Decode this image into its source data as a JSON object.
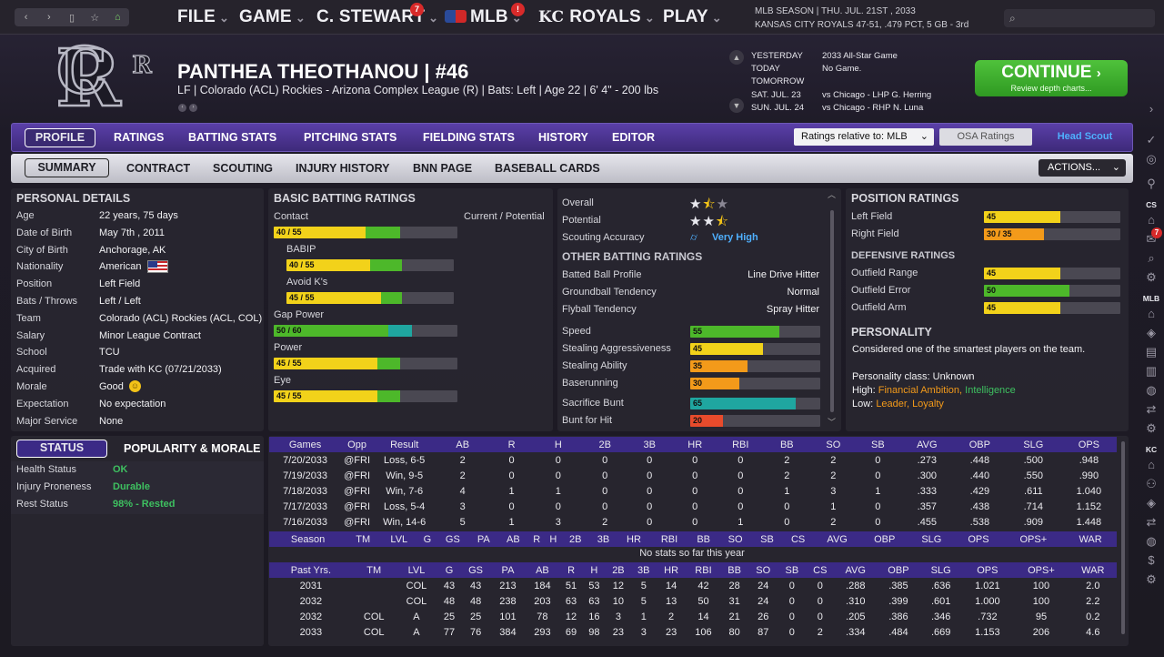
{
  "topbar": {
    "file": "FILE",
    "game": "GAME",
    "manager": "C. STEWART",
    "manager_badge": "7",
    "league": "MLB",
    "league_badge": "!",
    "team": "ROYALS",
    "play": "PLAY",
    "season_line": "MLB SEASON",
    "date": "THU. JUL. 21ST , 2033",
    "team_name": "KANSAS CITY ROYALS",
    "record": "47-51, .479 PCT, 5 GB - 3rd"
  },
  "player": {
    "name": "PANTHEA THEOTHANOU",
    "number": "#46",
    "info": "LF | Colorado (ACL) Rockies - Arizona Complex League (R)  |  Bats: Left  |  Age 22  |  6' 4\" - 200 lbs"
  },
  "schedule": [
    {
      "day": "YESTERDAY",
      "event": "2033 All-Star Game"
    },
    {
      "day": "TODAY",
      "event": "No Game."
    },
    {
      "day": "TOMORROW",
      "event": ""
    },
    {
      "day": "SAT. JUL. 23",
      "event": "vs Chicago - LHP G. Herring"
    },
    {
      "day": "SUN. JUL. 24",
      "event": "vs Chicago - RHP N. Luna"
    }
  ],
  "continue": {
    "label": "CONTINUE",
    "sub": "Review depth charts..."
  },
  "tabs1": [
    "PROFILE",
    "RATINGS",
    "BATTING STATS",
    "PITCHING STATS",
    "FIELDING STATS",
    "HISTORY",
    "EDITOR"
  ],
  "ratings_rel": "Ratings relative to: MLB",
  "osa": "OSA Ratings",
  "head_scout": "Head Scout",
  "tabs2": [
    "SUMMARY",
    "CONTRACT",
    "SCOUTING",
    "INJURY HISTORY",
    "BNN PAGE",
    "BASEBALL CARDS"
  ],
  "actions": "ACTIONS...",
  "personal": {
    "title": "PERSONAL DETAILS",
    "rows": [
      [
        "Age",
        "22 years, 75 days"
      ],
      [
        "Date of Birth",
        "May 7th , 2011"
      ],
      [
        "City of Birth",
        "Anchorage, AK"
      ],
      [
        "Nationality",
        "American"
      ],
      [
        "Position",
        "Left Field"
      ],
      [
        "Bats / Throws",
        "Left / Left"
      ],
      [
        "Team",
        "Colorado (ACL) Rockies (ACL, COL)"
      ],
      [
        "Salary",
        "Minor League Contract"
      ],
      [
        "School",
        "TCU"
      ],
      [
        "Acquired",
        "Trade with KC (07/21/2033)"
      ],
      [
        "Morale",
        "Good"
      ],
      [
        "Expectation",
        "No expectation"
      ],
      [
        "Major Service",
        "None"
      ]
    ]
  },
  "status": {
    "tab": "STATUS",
    "tab2": "POPULARITY & MORALE",
    "rows": [
      [
        "Health Status",
        "OK"
      ],
      [
        "Injury Proneness",
        "Durable"
      ],
      [
        "Rest Status",
        "98% - Rested"
      ]
    ]
  },
  "batting": {
    "title": "BASIC BATTING RATINGS",
    "header": "Current / Potential",
    "rows": [
      {
        "label": "Contact",
        "text": "40 / 55",
        "cur": 40,
        "pot": 55
      },
      {
        "label": "BABIP",
        "text": "40 / 55",
        "cur": 40,
        "pot": 55
      },
      {
        "label": "Avoid K's",
        "text": "45 / 55",
        "cur": 45,
        "pot": 55
      },
      {
        "label": "Gap Power",
        "text": "50 / 60",
        "cur": 50,
        "pot": 60
      },
      {
        "label": "Power",
        "text": "45 / 55",
        "cur": 45,
        "pot": 55
      },
      {
        "label": "Eye",
        "text": "45 / 55",
        "cur": 45,
        "pot": 55
      }
    ]
  },
  "summary": {
    "overall": "Overall",
    "potential": "Potential",
    "scouting": "Scouting Accuracy",
    "scouting_val": "Very High",
    "overall_stars": 1.5,
    "potential_stars": 2.5
  },
  "other": {
    "title": "OTHER BATTING RATINGS",
    "rows": [
      [
        "Batted Ball Profile",
        "Line Drive Hitter"
      ],
      [
        "Groundball Tendency",
        "Normal"
      ],
      [
        "Flyball Tendency",
        "Spray Hitter"
      ]
    ],
    "bars": [
      {
        "label": "Speed",
        "v": 55
      },
      {
        "label": "Stealing Aggressiveness",
        "v": 45
      },
      {
        "label": "Stealing Ability",
        "v": 35
      },
      {
        "label": "Baserunning",
        "v": 30
      },
      {
        "label": "Sacrifice Bunt",
        "v": 65
      },
      {
        "label": "Bunt for Hit",
        "v": 20
      }
    ]
  },
  "position": {
    "title": "POSITION RATINGS",
    "rows": [
      {
        "label": "Left Field",
        "text": "45",
        "cur": 45,
        "pot": 45
      },
      {
        "label": "Right Field",
        "text": "30 / 35",
        "cur": 30,
        "pot": 35
      }
    ],
    "def_title": "DEFENSIVE RATINGS",
    "def": [
      {
        "label": "Outfield Range",
        "v": 45
      },
      {
        "label": "Outfield Error",
        "v": 50
      },
      {
        "label": "Outfield Arm",
        "v": 45
      }
    ]
  },
  "personality": {
    "title": "PERSONALITY",
    "desc": "Considered one of the smartest players on the team.",
    "class": "Personality class: Unknown",
    "high_label": "High:",
    "high1": "Financial Ambition,",
    "high2": "Intelligence",
    "low_label": "Low:",
    "low": "Leader, Loyalty"
  },
  "games": {
    "header": [
      "Games",
      "Opp",
      "Result",
      "AB",
      "R",
      "H",
      "2B",
      "3B",
      "HR",
      "RBI",
      "BB",
      "SO",
      "SB",
      "AVG",
      "OBP",
      "SLG",
      "OPS"
    ],
    "rows": [
      [
        "7/20/2033",
        "@FRI",
        "Loss, 6-5",
        "2",
        "0",
        "0",
        "0",
        "0",
        "0",
        "0",
        "2",
        "2",
        "0",
        ".273",
        ".448",
        ".500",
        ".948"
      ],
      [
        "7/19/2033",
        "@FRI",
        "Win, 9-5",
        "2",
        "0",
        "0",
        "0",
        "0",
        "0",
        "0",
        "2",
        "2",
        "0",
        ".300",
        ".440",
        ".550",
        ".990"
      ],
      [
        "7/18/2033",
        "@FRI",
        "Win, 7-6",
        "4",
        "1",
        "1",
        "0",
        "0",
        "0",
        "0",
        "1",
        "3",
        "1",
        ".333",
        ".429",
        ".611",
        "1.040"
      ],
      [
        "7/17/2033",
        "@FRI",
        "Loss, 5-4",
        "3",
        "0",
        "0",
        "0",
        "0",
        "0",
        "0",
        "0",
        "1",
        "0",
        ".357",
        ".438",
        ".714",
        "1.152"
      ],
      [
        "7/16/2033",
        "@FRI",
        "Win, 14-6",
        "5",
        "1",
        "3",
        "2",
        "0",
        "0",
        "1",
        "0",
        "2",
        "0",
        ".455",
        ".538",
        ".909",
        "1.448"
      ]
    ]
  },
  "season": {
    "header": [
      "Season",
      "TM",
      "LVL",
      "G",
      "GS",
      "PA",
      "AB",
      "R",
      "H",
      "2B",
      "3B",
      "HR",
      "RBI",
      "BB",
      "SO",
      "SB",
      "CS",
      "AVG",
      "OBP",
      "SLG",
      "OPS",
      "OPS+",
      "WAR"
    ],
    "empty": "No stats so far this year"
  },
  "past": {
    "header": [
      "Past Yrs.",
      "TM",
      "LVL",
      "G",
      "GS",
      "PA",
      "AB",
      "R",
      "H",
      "2B",
      "3B",
      "HR",
      "RBI",
      "BB",
      "SO",
      "SB",
      "CS",
      "AVG",
      "OBP",
      "SLG",
      "OPS",
      "OPS+",
      "WAR"
    ],
    "rows": [
      [
        "2031",
        "",
        "COL",
        "43",
        "43",
        "213",
        "184",
        "51",
        "53",
        "12",
        "5",
        "14",
        "42",
        "28",
        "24",
        "0",
        "0",
        ".288",
        ".385",
        ".636",
        "1.021",
        "100",
        "2.0"
      ],
      [
        "2032",
        "",
        "COL",
        "48",
        "48",
        "238",
        "203",
        "63",
        "63",
        "10",
        "5",
        "13",
        "50",
        "31",
        "24",
        "0",
        "0",
        ".310",
        ".399",
        ".601",
        "1.000",
        "100",
        "2.2"
      ],
      [
        "2032",
        "COL",
        "A",
        "25",
        "25",
        "101",
        "78",
        "12",
        "16",
        "3",
        "1",
        "2",
        "14",
        "21",
        "26",
        "0",
        "0",
        ".205",
        ".386",
        ".346",
        ".732",
        "95",
        "0.2"
      ],
      [
        "2033",
        "COL",
        "A",
        "77",
        "76",
        "384",
        "293",
        "69",
        "98",
        "23",
        "3",
        "23",
        "106",
        "80",
        "87",
        "0",
        "2",
        ".334",
        ".484",
        ".669",
        "1.153",
        "206",
        "4.6"
      ]
    ]
  },
  "sidebar": {
    "cs": "CS",
    "cs_badge": "7",
    "mlb": "MLB",
    "kc": "KC"
  },
  "colors": {
    "yellow": "#f2d21a",
    "green": "#4db82a",
    "orange": "#f39a1a",
    "red": "#e84b2c",
    "teal": "#1fa6a0",
    "accent": "#3b2a86"
  }
}
